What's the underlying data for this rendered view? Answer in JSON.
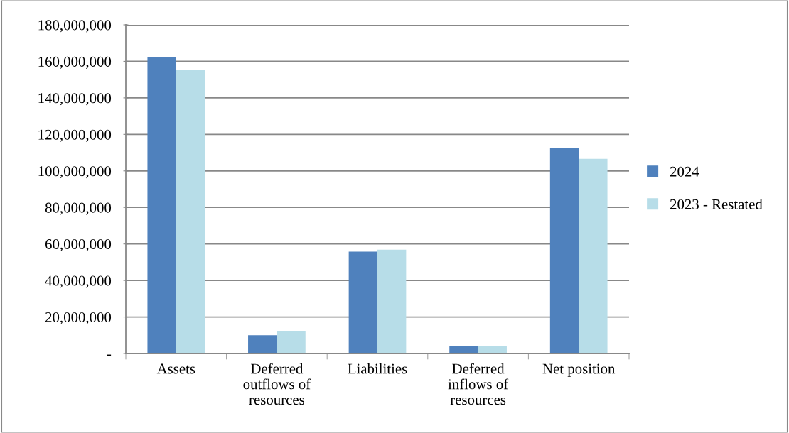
{
  "chart_data": {
    "type": "bar",
    "categories": [
      "Assets",
      "Deferred\noutflows of\nresources",
      "Liabilities",
      "Deferred\ninflows of\nresources",
      "Net position"
    ],
    "series": [
      {
        "name": "2024",
        "color": "#4f81bd",
        "values": [
          162100000,
          10000000,
          55800000,
          3900000,
          112400000
        ]
      },
      {
        "name": "2023 - Restated",
        "color": "#b7dde8",
        "values": [
          155400000,
          12300000,
          56900000,
          4300000,
          106600000
        ]
      }
    ],
    "ylim": [
      0,
      180000000
    ],
    "yticks": [
      {
        "value": 0,
        "label": "-"
      },
      {
        "value": 20000000,
        "label": "20,000,000"
      },
      {
        "value": 40000000,
        "label": "40,000,000"
      },
      {
        "value": 60000000,
        "label": "60,000,000"
      },
      {
        "value": 80000000,
        "label": "80,000,000"
      },
      {
        "value": 100000000,
        "label": "100,000,000"
      },
      {
        "value": 120000000,
        "label": "120,000,000"
      },
      {
        "value": 140000000,
        "label": "140,000,000"
      },
      {
        "value": 160000000,
        "label": "160,000,000"
      },
      {
        "value": 180000000,
        "label": "180,000,000"
      }
    ],
    "grid": "y",
    "legend": "right"
  }
}
